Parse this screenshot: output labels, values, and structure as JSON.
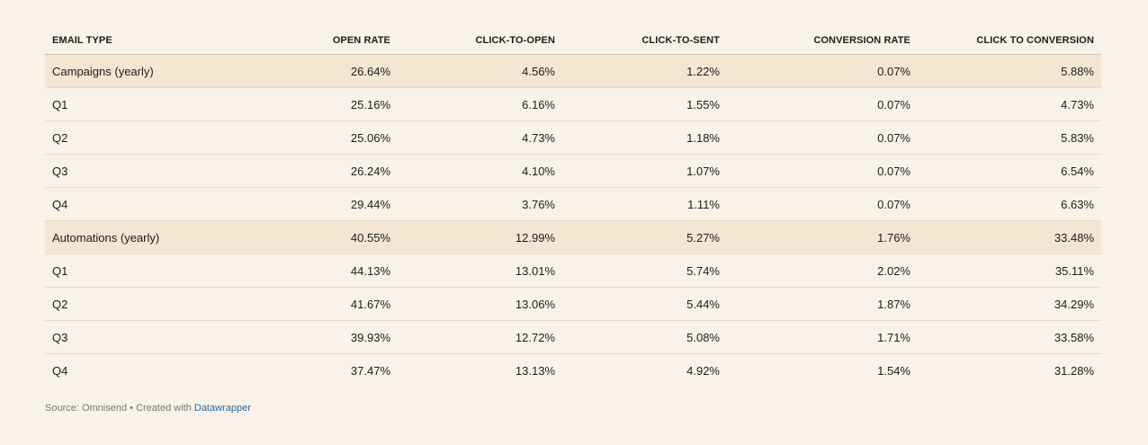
{
  "chart_data": {
    "type": "table",
    "columns": [
      "EMAIL TYPE",
      "OPEN RATE",
      "CLICK-TO-OPEN",
      "CLICK-TO-SENT",
      "CONVERSION RATE",
      "CLICK TO CONVERSION"
    ],
    "rows": [
      {
        "cells": [
          "Campaigns (yearly)",
          "26.64%",
          "4.56%",
          "1.22%",
          "0.07%",
          "5.88%"
        ],
        "highlight": true
      },
      {
        "cells": [
          "Q1",
          "25.16%",
          "6.16%",
          "1.55%",
          "0.07%",
          "4.73%"
        ],
        "highlight": false
      },
      {
        "cells": [
          "Q2",
          "25.06%",
          "4.73%",
          "1.18%",
          "0.07%",
          "5.83%"
        ],
        "highlight": false
      },
      {
        "cells": [
          "Q3",
          "26.24%",
          "4.10%",
          "1.07%",
          "0.07%",
          "6.54%"
        ],
        "highlight": false
      },
      {
        "cells": [
          "Q4",
          "29.44%",
          "3.76%",
          "1.11%",
          "0.07%",
          "6.63%"
        ],
        "highlight": false
      },
      {
        "cells": [
          "Automations (yearly)",
          "40.55%",
          "12.99%",
          "5.27%",
          "1.76%",
          "33.48%"
        ],
        "highlight": true
      },
      {
        "cells": [
          "Q1",
          "44.13%",
          "13.01%",
          "5.74%",
          "2.02%",
          "35.11%"
        ],
        "highlight": false
      },
      {
        "cells": [
          "Q2",
          "41.67%",
          "13.06%",
          "5.44%",
          "1.87%",
          "34.29%"
        ],
        "highlight": false
      },
      {
        "cells": [
          "Q3",
          "39.93%",
          "12.72%",
          "5.08%",
          "1.71%",
          "33.58%"
        ],
        "highlight": false
      },
      {
        "cells": [
          "Q4",
          "37.47%",
          "13.13%",
          "4.92%",
          "1.54%",
          "31.28%"
        ],
        "highlight": false
      }
    ]
  },
  "footer": {
    "source_text": "Source: Omnisend • Created with ",
    "link_text": "Datawrapper"
  },
  "colors": {
    "background": "#f9f2e8",
    "highlight_row": "#f3e6d3",
    "link": "#1f6fa8"
  }
}
